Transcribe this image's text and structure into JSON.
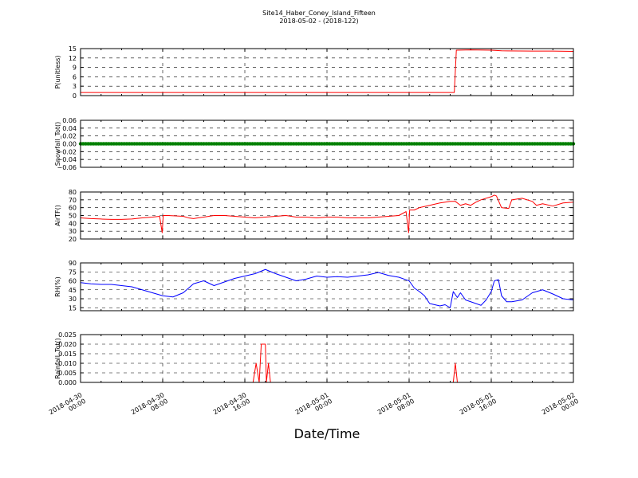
{
  "chart_data": {
    "type": "line",
    "title": "Site14_Haber_Coney_Island_Fifteen",
    "subtitle": "2018-05-02 - (2018-122)",
    "xlabel": "Date/Time",
    "x_ticks": [
      {
        "line1": "2018-04-30",
        "line2": "00:00",
        "t": 0
      },
      {
        "line1": "2018-04-30",
        "line2": "08:00",
        "t": 8
      },
      {
        "line1": "2018-04-30",
        "line2": "16:00",
        "t": 16
      },
      {
        "line1": "2018-05-01",
        "line2": "00:00",
        "t": 24
      },
      {
        "line1": "2018-05-01",
        "line2": "08:00",
        "t": 32
      },
      {
        "line1": "2018-05-01",
        "line2": "16:00",
        "t": 40
      },
      {
        "line1": "2018-05-02",
        "line2": "00:00",
        "t": 48
      }
    ],
    "xlim": [
      0,
      48
    ],
    "grid": true,
    "panels": [
      {
        "ylabel": "P(unitless)",
        "ylim": [
          0,
          15
        ],
        "yticks": [
          0,
          3,
          6,
          9,
          12,
          15
        ],
        "ytick_labels": [
          "0",
          "3",
          "6",
          "9",
          "12",
          "15"
        ],
        "series": [
          {
            "color": "#ff0000",
            "x": [
              0,
              36.4,
              36.6,
              38,
              40,
              41,
              44,
              46,
              48
            ],
            "y": [
              1,
              1,
              14.5,
              14.6,
              14.5,
              14.3,
              14.2,
              14.2,
              14.1
            ]
          }
        ]
      },
      {
        "ylabel": "Snowfall_Tot()",
        "ylim": [
          -0.06,
          0.06
        ],
        "yticks": [
          -0.06,
          -0.04,
          -0.02,
          0.0,
          0.02,
          0.04,
          0.06
        ],
        "ytick_labels": [
          "−0.06",
          "−0.04",
          "−0.02",
          "0.00",
          "0.02",
          "0.04",
          "0.06"
        ],
        "series": [
          {
            "color": "#008000",
            "marker": true,
            "x": [
              0,
              48
            ],
            "y": [
              0,
              0
            ]
          }
        ]
      },
      {
        "ylabel": "AirTF()",
        "ylim": [
          20,
          80
        ],
        "yticks": [
          20,
          30,
          40,
          50,
          60,
          70,
          80
        ],
        "ytick_labels": [
          "20",
          "30",
          "40",
          "50",
          "60",
          "70",
          "80"
        ],
        "series": [
          {
            "color": "#ff0000",
            "x": [
              0,
              1,
              2,
              3,
              4,
              5,
              6,
              7,
              7.7,
              7.95,
              8.05,
              8.5,
              10,
              10.5,
              11,
              12,
              13,
              14,
              15,
              16,
              17,
              18,
              19,
              20,
              21,
              22,
              23,
              24,
              25,
              26,
              27,
              28,
              29,
              30,
              31,
              31.7,
              31.95,
              32.05,
              32.5,
              33,
              34,
              35,
              36,
              36.5,
              37,
              37.5,
              38,
              38.5,
              39,
              40,
              40.3,
              40.5,
              41,
              41.7,
              42,
              43,
              44,
              44.4,
              45,
              46,
              47,
              48
            ],
            "y": [
              47,
              46,
              45.5,
              45,
              45,
              45.5,
              47,
              48,
              49,
              28,
              50,
              50,
              49,
              47,
              46,
              48,
              50,
              50,
              49,
              48,
              47,
              48,
              49,
              50,
              48,
              48,
              47,
              48,
              48,
              47,
              47,
              47,
              48,
              49,
              50,
              55,
              28,
              57,
              57,
              60,
              63,
              66,
              68,
              68,
              63,
              65,
              63,
              67,
              70,
              74,
              76,
              75,
              60,
              59,
              70,
              72,
              68,
              63,
              65,
              62,
              66,
              67
            ]
          }
        ]
      },
      {
        "ylabel": "RH(%)",
        "ylim": [
          10,
          90
        ],
        "yticks": [
          15,
          30,
          45,
          60,
          75,
          90
        ],
        "ytick_labels": [
          "15",
          "30",
          "45",
          "60",
          "75",
          "90"
        ],
        "series": [
          {
            "color": "#0000ff",
            "x": [
              0,
              1,
              2,
              3,
              4,
              5,
              6,
              7,
              8,
              9,
              10,
              11,
              12,
              13,
              14,
              15,
              16,
              17,
              18,
              19,
              20,
              21,
              22,
              23,
              24,
              25,
              26,
              27,
              28,
              29,
              30,
              31,
              32,
              32.5,
              33,
              33.5,
              34,
              35,
              35.5,
              36,
              36.3,
              36.7,
              37,
              37.5,
              38,
              39,
              39.5,
              40,
              40.3,
              40.7,
              41,
              41.5,
              42,
              43,
              44,
              45,
              46,
              47,
              48
            ],
            "y": [
              57,
              55,
              54,
              54,
              52,
              50,
              45,
              40,
              35,
              33,
              40,
              55,
              60,
              52,
              58,
              64,
              68,
              72,
              79,
              72,
              66,
              60,
              63,
              68,
              66,
              67,
              66,
              68,
              70,
              74,
              69,
              66,
              60,
              48,
              42,
              35,
              22,
              18,
              20,
              15,
              42,
              32,
              40,
              28,
              25,
              19,
              28,
              42,
              60,
              62,
              35,
              25,
              25,
              28,
              40,
              45,
              38,
              30,
              28
            ]
          }
        ]
      },
      {
        "ylabel": "Rainfall_Tot()",
        "ylim": [
          0,
          0.025
        ],
        "yticks": [
          0,
          0.005,
          0.01,
          0.015,
          0.02,
          0.025
        ],
        "ytick_labels": [
          "0.000",
          "0.005",
          "0.010",
          "0.015",
          "0.020",
          "0.025"
        ],
        "series": [
          {
            "color": "#ff0000",
            "x": [
              0,
              16.8,
              17.1,
              17.4,
              17.6,
              17.8,
              18.0,
              18.1,
              18.3,
              18.5,
              18.7,
              36.3,
              36.5,
              36.7,
              48
            ],
            "y": [
              0,
              0,
              0.01,
              0,
              0.02,
              0.02,
              0.02,
              0,
              0.01,
              0,
              0,
              0,
              0.01,
              0,
              0
            ]
          }
        ]
      }
    ]
  }
}
